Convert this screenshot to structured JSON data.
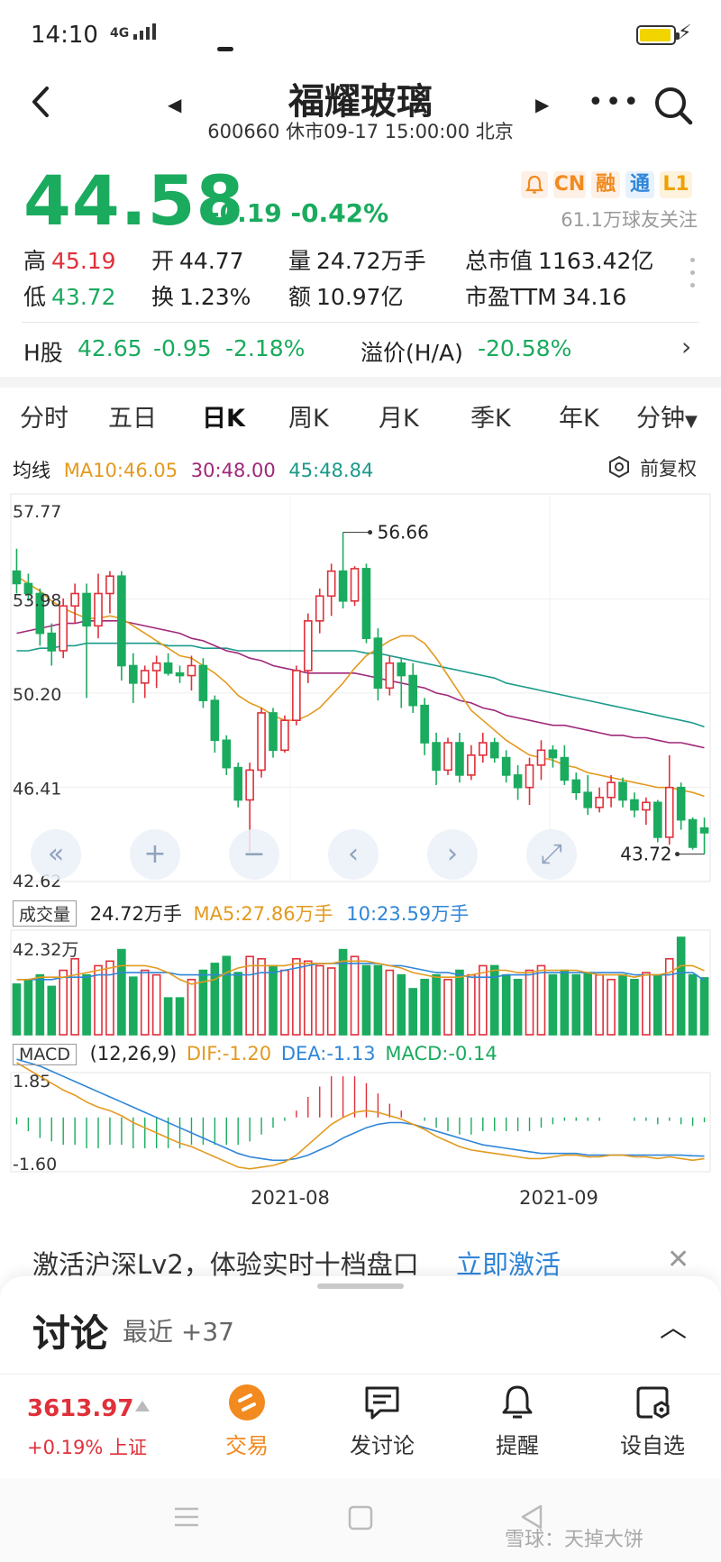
{
  "status_bar": {
    "time": "14:10",
    "network": "4G"
  },
  "header": {
    "stock_name": "福耀玻璃",
    "subtitle": "600660 休市09-17 15:00:00 北京"
  },
  "quote": {
    "price": "44.58",
    "change": "-0.19 -0.42%",
    "tags": {
      "cn": "CN",
      "rong": "融",
      "tong": "通",
      "l1": "L1"
    },
    "followers": "61.1万球友关注",
    "stats": {
      "high_label": "高",
      "high": "45.19",
      "low_label": "低",
      "low": "43.72",
      "open_label": "开",
      "open": "44.77",
      "turnover_label": "换",
      "turnover": "1.23%",
      "volume_label": "量",
      "volume": "24.72万手",
      "amount_label": "额",
      "amount": "10.97亿",
      "market_cap_label": "总市值",
      "market_cap": "1163.42亿",
      "pe_label": "市盈TTM",
      "pe": "34.16"
    },
    "h_share": {
      "label": "H股",
      "price": "42.65",
      "change": "-0.95",
      "change_pct": "-2.18%",
      "premium_label": "溢价(H/A)",
      "premium": "-20.58%"
    }
  },
  "kline_tabs": [
    "分时",
    "五日",
    "日K",
    "周K",
    "月K",
    "季K",
    "年K",
    "分钟"
  ],
  "active_tab": "日K",
  "ma_legend": {
    "label": "均线",
    "ma10": "MA10:46.05",
    "ma30": "30:48.00",
    "ma45": "45:48.84"
  },
  "adjust_label": "前复权",
  "colors": {
    "up": "#e0303a",
    "down": "#1aab5e",
    "ma10": "#e39a1f",
    "ma30": "#a0287a",
    "ma45": "#1a9a8a",
    "accent": "#f28a20",
    "link": "#2f86d8"
  },
  "chart_data": {
    "type": "candlestick",
    "price_axis": [
      "57.77",
      "53.98",
      "50.20",
      "46.41",
      "42.62"
    ],
    "max_label": "56.66",
    "min_label": "43.72",
    "x_labels": [
      "2021-08",
      "2021-09"
    ],
    "candles": [
      [
        55.1,
        56.0,
        54.2,
        54.6
      ],
      [
        54.6,
        55.0,
        53.9,
        54.2
      ],
      [
        54.2,
        54.4,
        52.1,
        52.6
      ],
      [
        52.6,
        53.0,
        51.3,
        51.9
      ],
      [
        51.9,
        54.0,
        51.6,
        53.7
      ],
      [
        53.7,
        54.6,
        53.0,
        54.2
      ],
      [
        54.2,
        54.6,
        50.0,
        52.9
      ],
      [
        52.9,
        55.0,
        52.4,
        54.2
      ],
      [
        54.2,
        55.1,
        53.4,
        54.9
      ],
      [
        54.9,
        55.1,
        50.7,
        51.3
      ],
      [
        51.3,
        51.8,
        49.8,
        50.6
      ],
      [
        50.6,
        51.3,
        50.0,
        51.1
      ],
      [
        51.1,
        51.7,
        50.4,
        51.4
      ],
      [
        51.4,
        51.8,
        50.9,
        51.0
      ],
      [
        51.0,
        51.3,
        50.6,
        50.9
      ],
      [
        50.9,
        51.7,
        50.3,
        51.3
      ],
      [
        51.3,
        51.6,
        49.6,
        49.9
      ],
      [
        49.9,
        50.1,
        47.8,
        48.3
      ],
      [
        48.3,
        48.5,
        46.9,
        47.2
      ],
      [
        47.2,
        47.4,
        45.6,
        45.9
      ],
      [
        45.9,
        47.4,
        43.8,
        47.1
      ],
      [
        47.1,
        49.6,
        46.8,
        49.4
      ],
      [
        49.4,
        49.6,
        47.6,
        47.9
      ],
      [
        47.9,
        49.3,
        47.8,
        49.1
      ],
      [
        49.1,
        51.3,
        48.9,
        51.1
      ],
      [
        51.1,
        53.4,
        50.6,
        53.1
      ],
      [
        53.1,
        54.4,
        52.6,
        54.1
      ],
      [
        54.1,
        55.4,
        53.3,
        55.1
      ],
      [
        55.1,
        56.66,
        53.6,
        53.9
      ],
      [
        53.9,
        55.3,
        53.7,
        55.2
      ],
      [
        55.2,
        55.4,
        52.2,
        52.4
      ],
      [
        52.4,
        52.8,
        49.9,
        50.4
      ],
      [
        50.4,
        51.7,
        50.1,
        51.4
      ],
      [
        51.4,
        51.6,
        49.6,
        50.9
      ],
      [
        50.9,
        51.4,
        49.4,
        49.7
      ],
      [
        49.7,
        50.0,
        47.7,
        48.2
      ],
      [
        48.2,
        48.6,
        46.5,
        47.1
      ],
      [
        47.1,
        48.4,
        46.9,
        48.2
      ],
      [
        48.2,
        48.6,
        46.6,
        46.9
      ],
      [
        46.9,
        48.1,
        46.7,
        47.7
      ],
      [
        47.7,
        48.6,
        47.4,
        48.2
      ],
      [
        48.2,
        48.4,
        47.4,
        47.6
      ],
      [
        47.6,
        47.9,
        46.6,
        46.9
      ],
      [
        46.9,
        47.3,
        45.9,
        46.4
      ],
      [
        46.4,
        47.6,
        45.7,
        47.3
      ],
      [
        47.3,
        48.3,
        46.7,
        47.9
      ],
      [
        47.9,
        48.1,
        47.2,
        47.6
      ],
      [
        47.6,
        48.1,
        46.5,
        46.7
      ],
      [
        46.7,
        47.0,
        45.9,
        46.2
      ],
      [
        46.2,
        46.9,
        45.3,
        45.6
      ],
      [
        45.6,
        46.4,
        45.4,
        46.0
      ],
      [
        46.0,
        46.9,
        45.6,
        46.6
      ],
      [
        46.6,
        46.8,
        45.6,
        45.9
      ],
      [
        45.9,
        46.2,
        45.2,
        45.5
      ],
      [
        45.5,
        46.0,
        44.9,
        45.8
      ],
      [
        45.8,
        45.9,
        44.2,
        44.4
      ],
      [
        44.4,
        47.7,
        44.1,
        46.4
      ],
      [
        46.4,
        46.6,
        44.7,
        45.1
      ],
      [
        45.1,
        45.2,
        43.9,
        44.0
      ],
      [
        44.77,
        45.19,
        43.72,
        44.58
      ]
    ],
    "ma10": [
      54.9,
      54.6,
      54.3,
      53.9,
      53.6,
      53.4,
      53.2,
      53.2,
      53.3,
      53.2,
      52.9,
      52.6,
      52.3,
      52.0,
      51.7,
      51.6,
      51.3,
      51.0,
      50.6,
      50.1,
      49.8,
      49.6,
      49.3,
      49.1,
      49.1,
      49.3,
      49.6,
      50.1,
      50.6,
      51.2,
      51.7,
      52.0,
      52.3,
      52.5,
      52.5,
      52.2,
      51.6,
      50.9,
      50.2,
      49.5,
      49.1,
      48.7,
      48.3,
      48.0,
      47.7,
      47.6,
      47.5,
      47.3,
      47.2,
      47.0,
      46.9,
      46.8,
      46.7,
      46.6,
      46.5,
      46.4,
      46.4,
      46.3,
      46.2,
      46.05
    ],
    "ma30": [
      52.6,
      52.7,
      52.8,
      52.9,
      53.0,
      53.0,
      53.1,
      53.1,
      53.1,
      53.1,
      53.0,
      52.9,
      52.8,
      52.7,
      52.6,
      52.4,
      52.3,
      52.1,
      51.9,
      51.8,
      51.6,
      51.5,
      51.3,
      51.2,
      51.1,
      51.0,
      51.0,
      51.0,
      51.0,
      51.0,
      50.9,
      50.8,
      50.7,
      50.6,
      50.5,
      50.4,
      50.2,
      50.1,
      49.9,
      49.8,
      49.6,
      49.5,
      49.3,
      49.2,
      49.1,
      49.0,
      48.9,
      48.9,
      48.8,
      48.7,
      48.6,
      48.5,
      48.5,
      48.4,
      48.4,
      48.3,
      48.2,
      48.2,
      48.1,
      48.0
    ],
    "ma45": [
      51.9,
      51.9,
      52.0,
      52.0,
      52.1,
      52.1,
      52.2,
      52.2,
      52.2,
      52.2,
      52.2,
      52.2,
      52.2,
      52.1,
      52.1,
      52.1,
      52.0,
      52.0,
      52.0,
      51.9,
      51.9,
      51.9,
      51.9,
      51.9,
      51.9,
      51.9,
      51.9,
      51.9,
      51.9,
      51.9,
      51.8,
      51.8,
      51.7,
      51.6,
      51.5,
      51.4,
      51.3,
      51.2,
      51.1,
      51.0,
      50.9,
      50.8,
      50.6,
      50.5,
      50.4,
      50.3,
      50.2,
      50.1,
      50.0,
      49.9,
      49.8,
      49.7,
      49.6,
      49.5,
      49.4,
      49.3,
      49.2,
      49.1,
      49.0,
      48.84
    ],
    "volume_legend": {
      "label": "成交量",
      "vol": "24.72万手",
      "ma5": "MA5:27.86万手",
      "ma10": "10:23.59万手"
    },
    "volume_axis": "42.32万",
    "volumes": [
      22,
      24,
      26,
      21,
      28,
      33,
      26,
      30,
      32,
      37,
      25,
      28,
      26,
      16,
      16,
      24,
      28,
      31,
      34,
      27,
      34,
      33,
      30,
      28,
      33,
      32,
      30,
      29,
      37,
      34,
      30,
      30,
      28,
      26,
      20,
      24,
      26,
      24,
      28,
      26,
      30,
      30,
      26,
      24,
      28,
      30,
      26,
      28,
      26,
      27,
      26,
      24,
      26,
      24,
      27,
      26,
      33,
      42.32,
      26,
      24.72
    ],
    "vol_ma5": [
      24,
      24,
      25,
      25,
      25,
      26,
      27,
      28,
      29,
      30,
      30,
      30,
      29,
      27,
      24,
      22,
      23,
      24,
      27,
      29,
      30,
      30,
      30,
      30,
      31,
      31,
      31,
      31,
      32,
      32,
      32,
      31,
      30,
      29,
      27,
      26,
      25,
      25,
      25,
      26,
      27,
      28,
      28,
      27,
      27,
      28,
      28,
      28,
      28,
      27,
      26,
      26,
      26,
      25,
      26,
      26,
      27,
      30,
      30,
      27.86
    ],
    "vol_ma10": [
      24,
      24,
      24,
      24,
      25,
      25,
      25,
      26,
      26,
      27,
      27,
      27,
      27,
      27,
      26,
      26,
      26,
      26,
      26,
      26,
      26,
      27,
      27,
      28,
      29,
      30,
      31,
      31,
      31,
      31,
      31,
      31,
      30,
      30,
      29,
      28,
      27,
      27,
      26,
      25,
      25,
      25,
      26,
      26,
      26,
      27,
      27,
      27,
      27,
      27,
      27,
      27,
      27,
      26,
      26,
      26,
      26,
      27,
      27,
      23.59
    ],
    "macd_legend": {
      "label": "MACD",
      "params": "(12,26,9)",
      "dif": "DIF:-1.20",
      "dea": "DEA:-1.13",
      "macd": "MACD:-0.14"
    },
    "macd_axis": [
      "1.85",
      "-1.60"
    ],
    "dif": [
      1.6,
      1.4,
      1.2,
      1.0,
      0.8,
      0.65,
      0.45,
      0.3,
      0.2,
      0.05,
      -0.15,
      -0.3,
      -0.45,
      -0.6,
      -0.75,
      -0.85,
      -1.0,
      -1.15,
      -1.3,
      -1.45,
      -1.5,
      -1.45,
      -1.4,
      -1.3,
      -1.1,
      -0.8,
      -0.5,
      -0.2,
      0.0,
      0.15,
      0.2,
      0.15,
      0.05,
      -0.05,
      -0.2,
      -0.35,
      -0.55,
      -0.7,
      -0.85,
      -0.95,
      -1.0,
      -1.05,
      -1.1,
      -1.15,
      -1.2,
      -1.2,
      -1.15,
      -1.1,
      -1.1,
      -1.15,
      -1.15,
      -1.1,
      -1.1,
      -1.15,
      -1.15,
      -1.2,
      -1.15,
      -1.2,
      -1.25,
      -1.2
    ],
    "dea": [
      1.7,
      1.6,
      1.5,
      1.35,
      1.2,
      1.05,
      0.9,
      0.75,
      0.6,
      0.45,
      0.3,
      0.15,
      0.0,
      -0.15,
      -0.3,
      -0.45,
      -0.6,
      -0.75,
      -0.9,
      -1.05,
      -1.15,
      -1.2,
      -1.25,
      -1.25,
      -1.2,
      -1.1,
      -0.95,
      -0.8,
      -0.6,
      -0.45,
      -0.3,
      -0.2,
      -0.15,
      -0.15,
      -0.2,
      -0.3,
      -0.4,
      -0.5,
      -0.6,
      -0.7,
      -0.8,
      -0.85,
      -0.9,
      -0.95,
      -1.0,
      -1.05,
      -1.05,
      -1.05,
      -1.05,
      -1.1,
      -1.1,
      -1.1,
      -1.1,
      -1.1,
      -1.1,
      -1.1,
      -1.1,
      -1.1,
      -1.12,
      -1.13
    ],
    "macd_hist": [
      -0.2,
      -0.4,
      -0.6,
      -0.7,
      -0.8,
      -0.8,
      -0.9,
      -0.9,
      -0.8,
      -0.8,
      -0.9,
      -0.9,
      -0.9,
      -0.9,
      -0.9,
      -0.8,
      -0.8,
      -0.8,
      -0.8,
      -0.8,
      -0.7,
      -0.5,
      -0.3,
      -0.1,
      0.2,
      0.6,
      0.9,
      1.2,
      1.2,
      1.2,
      1.0,
      0.7,
      0.4,
      0.2,
      0.0,
      -0.1,
      -0.3,
      -0.4,
      -0.5,
      -0.5,
      -0.4,
      -0.4,
      -0.4,
      -0.4,
      -0.4,
      -0.3,
      -0.2,
      -0.1,
      -0.1,
      -0.1,
      -0.1,
      0.0,
      0.0,
      -0.1,
      -0.1,
      -0.2,
      -0.1,
      -0.2,
      -0.25,
      -0.14
    ]
  },
  "chart_controls": [
    "«",
    "+",
    "−",
    "‹",
    "›",
    "⤢"
  ],
  "promo": {
    "text": "激活沪深Lv2，体验实时十档盘口",
    "link": "立即激活"
  },
  "discussion": {
    "title": "讨论",
    "sub": "最近 +37"
  },
  "bottom_nav": {
    "index_value": "3613.97",
    "index_change": "+0.19% 上证",
    "items": [
      "交易",
      "发讨论",
      "提醒",
      "设自选"
    ]
  },
  "watermark": "雪球：天掉大饼"
}
